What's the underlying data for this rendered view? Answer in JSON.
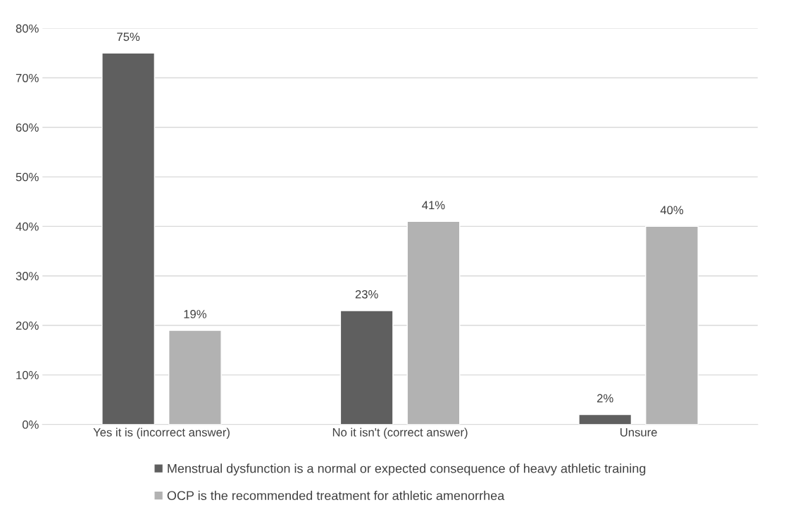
{
  "chart_data": {
    "type": "bar",
    "categories": [
      "Yes it is (incorrect answer)",
      "No it isn't (correct answer)",
      "Unsure"
    ],
    "series": [
      {
        "name": "Menstrual dysfunction is a normal or expected consequence of heavy athletic training",
        "color": "#5f5f5f",
        "values": [
          75,
          23,
          2
        ],
        "value_labels": [
          "75%",
          "23%",
          "2%"
        ]
      },
      {
        "name": "OCP is the recommended treatment for athletic amenorrhea",
        "color": "#b2b2b2",
        "values": [
          19,
          41,
          40
        ],
        "value_labels": [
          "19%",
          "41%",
          "40%"
        ]
      }
    ],
    "ylim": [
      0,
      80
    ],
    "yticks": [
      {
        "value": 0,
        "label": "0%"
      },
      {
        "value": 10,
        "label": "10%"
      },
      {
        "value": 20,
        "label": "20%"
      },
      {
        "value": 30,
        "label": "30%"
      },
      {
        "value": 40,
        "label": "40%"
      },
      {
        "value": 50,
        "label": "50%"
      },
      {
        "value": 60,
        "label": "60%"
      },
      {
        "value": 70,
        "label": "70%"
      },
      {
        "value": 80,
        "label": "80%"
      }
    ],
    "grid": "y",
    "legend": "bottom"
  }
}
